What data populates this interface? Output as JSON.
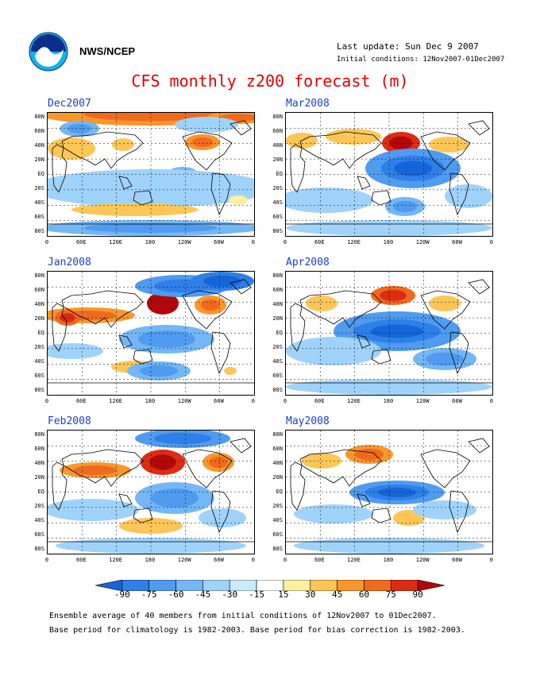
{
  "header": {
    "agency": "NWS/NCEP",
    "last_update": "Last update: Sun Dec  9 2007",
    "initial_conditions": "Initial conditions: 12Nov2007-01Dec2007"
  },
  "title": "CFS monthly z200 forecast (m)",
  "lat_labels": [
    "80N",
    "60N",
    "40N",
    "20N",
    "EQ",
    "20S",
    "40S",
    "60S",
    "80S"
  ],
  "lon_labels": [
    "0",
    "60E",
    "120E",
    "180",
    "120W",
    "60W",
    "0"
  ],
  "panels": [
    {
      "month": "Dec2007"
    },
    {
      "month": "Mar2008"
    },
    {
      "month": "Jan2008"
    },
    {
      "month": "Apr2008"
    },
    {
      "month": "Feb2008"
    },
    {
      "month": "May2008"
    }
  ],
  "colorbar": {
    "labels": [
      "-90",
      "-75",
      "-60",
      "-45",
      "-30",
      "-15",
      "15",
      "30",
      "45",
      "60",
      "75",
      "90"
    ],
    "colors": [
      "#1565d8",
      "#2f7fe8",
      "#4f9bf0",
      "#74b7f6",
      "#9fd3fb",
      "#c8ecfd",
      "#ffffff",
      "#fff0a0",
      "#fdc657",
      "#f9962c",
      "#f06a1e",
      "#dd2c14",
      "#b2080a"
    ]
  },
  "footer": {
    "line1": "Ensemble average of 40 members from initial conditions of 12Nov2007 to 01Dec2007.",
    "line2": "Base period for climatology is 1982-2003. Base period for bias correction is 1982-2003."
  },
  "icons": {
    "logo": "noaa-logo-icon"
  }
}
